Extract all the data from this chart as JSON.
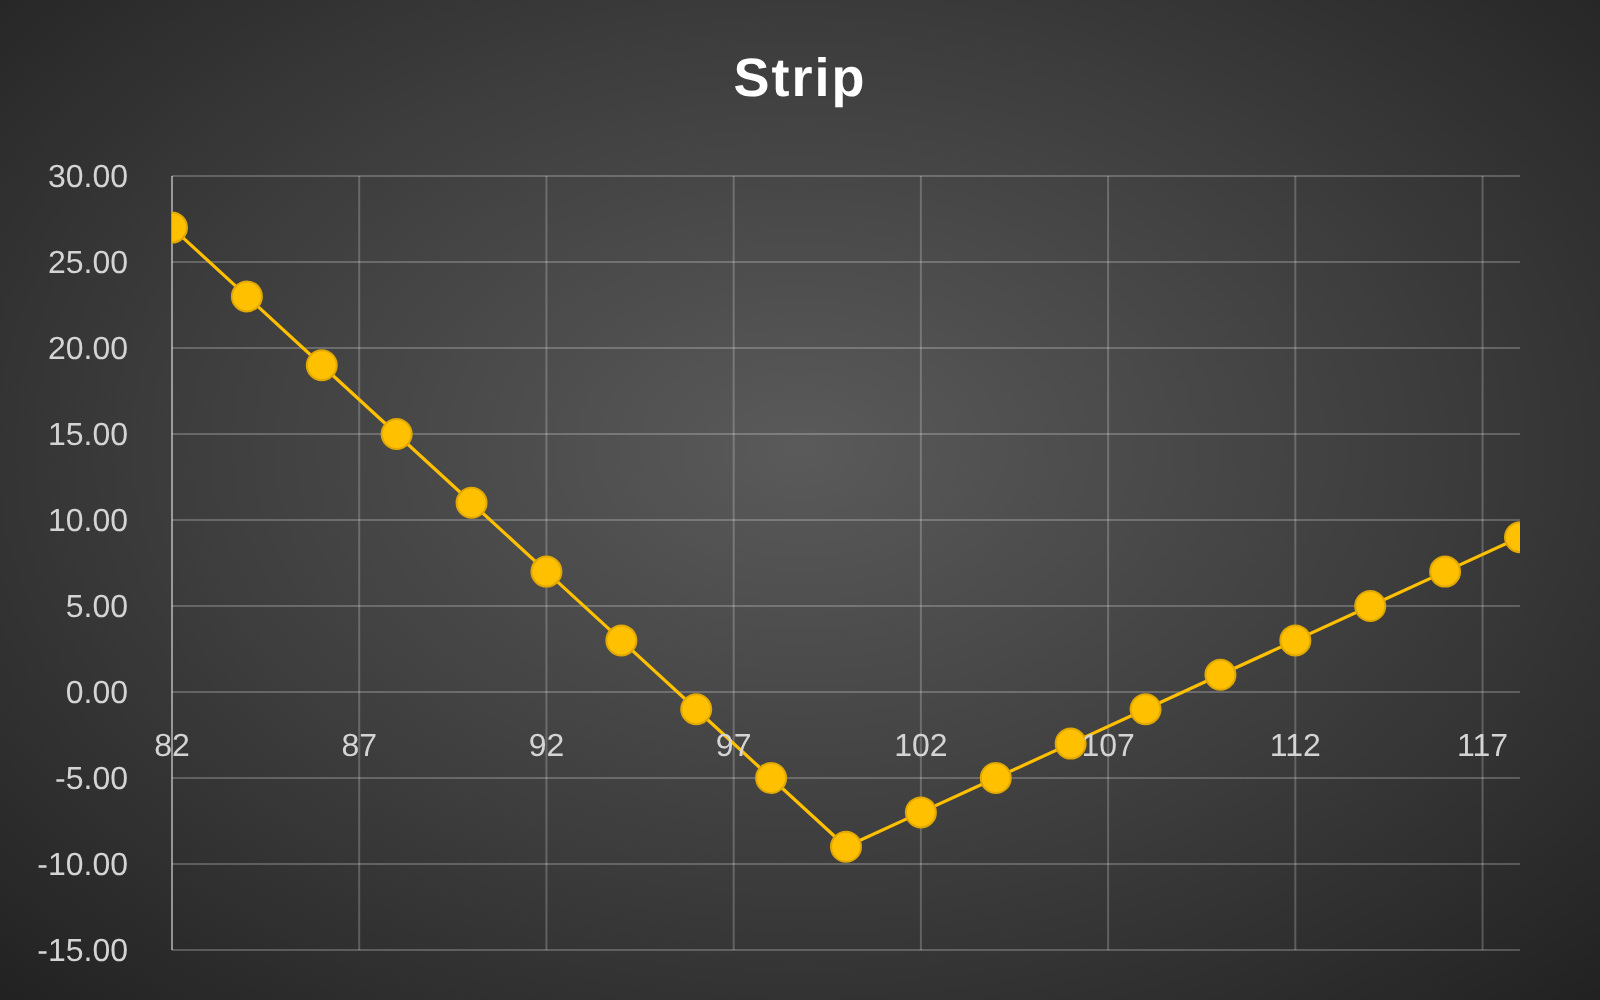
{
  "chart_data": {
    "type": "line",
    "title": "Strip",
    "x": [
      82,
      84,
      86,
      88,
      90,
      92,
      94,
      96,
      98,
      100,
      102,
      104,
      106,
      108,
      110,
      112,
      114,
      116,
      118
    ],
    "values": [
      27,
      23,
      19,
      15,
      11,
      7,
      3,
      -1,
      -5,
      -9,
      -7,
      -5,
      -3,
      -1,
      1,
      3,
      5,
      7,
      9
    ],
    "color": "#ffc000",
    "xlim": [
      82,
      118
    ],
    "xticks": [
      82,
      87,
      92,
      97,
      102,
      107,
      112,
      117
    ],
    "ylim": [
      -15,
      30
    ],
    "yticks": [
      {
        "value": -15,
        "label": "-15.00"
      },
      {
        "value": -10,
        "label": "-10.00"
      },
      {
        "value": -5,
        "label": "-5.00"
      },
      {
        "value": 0,
        "label": "0.00"
      },
      {
        "value": 5,
        "label": "5.00"
      },
      {
        "value": 10,
        "label": "10.00"
      },
      {
        "value": 15,
        "label": "15.00"
      },
      {
        "value": 20,
        "label": "20.00"
      },
      {
        "value": 25,
        "label": "25.00"
      },
      {
        "value": 30,
        "label": "30.00"
      }
    ],
    "grid": true,
    "marker": "circle",
    "line_style": "solid"
  }
}
